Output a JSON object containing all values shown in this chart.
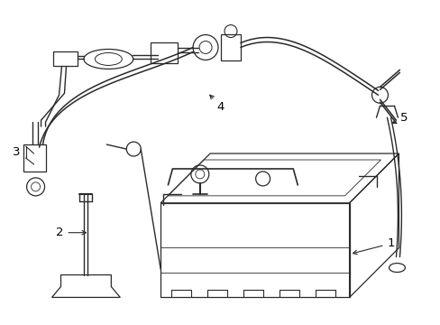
{
  "background_color": "#ffffff",
  "line_color": "#2a2a2a",
  "lw": 0.9,
  "figsize": [
    4.89,
    3.6
  ],
  "dpi": 100,
  "xlim": [
    0,
    489
  ],
  "ylim": [
    0,
    360
  ]
}
